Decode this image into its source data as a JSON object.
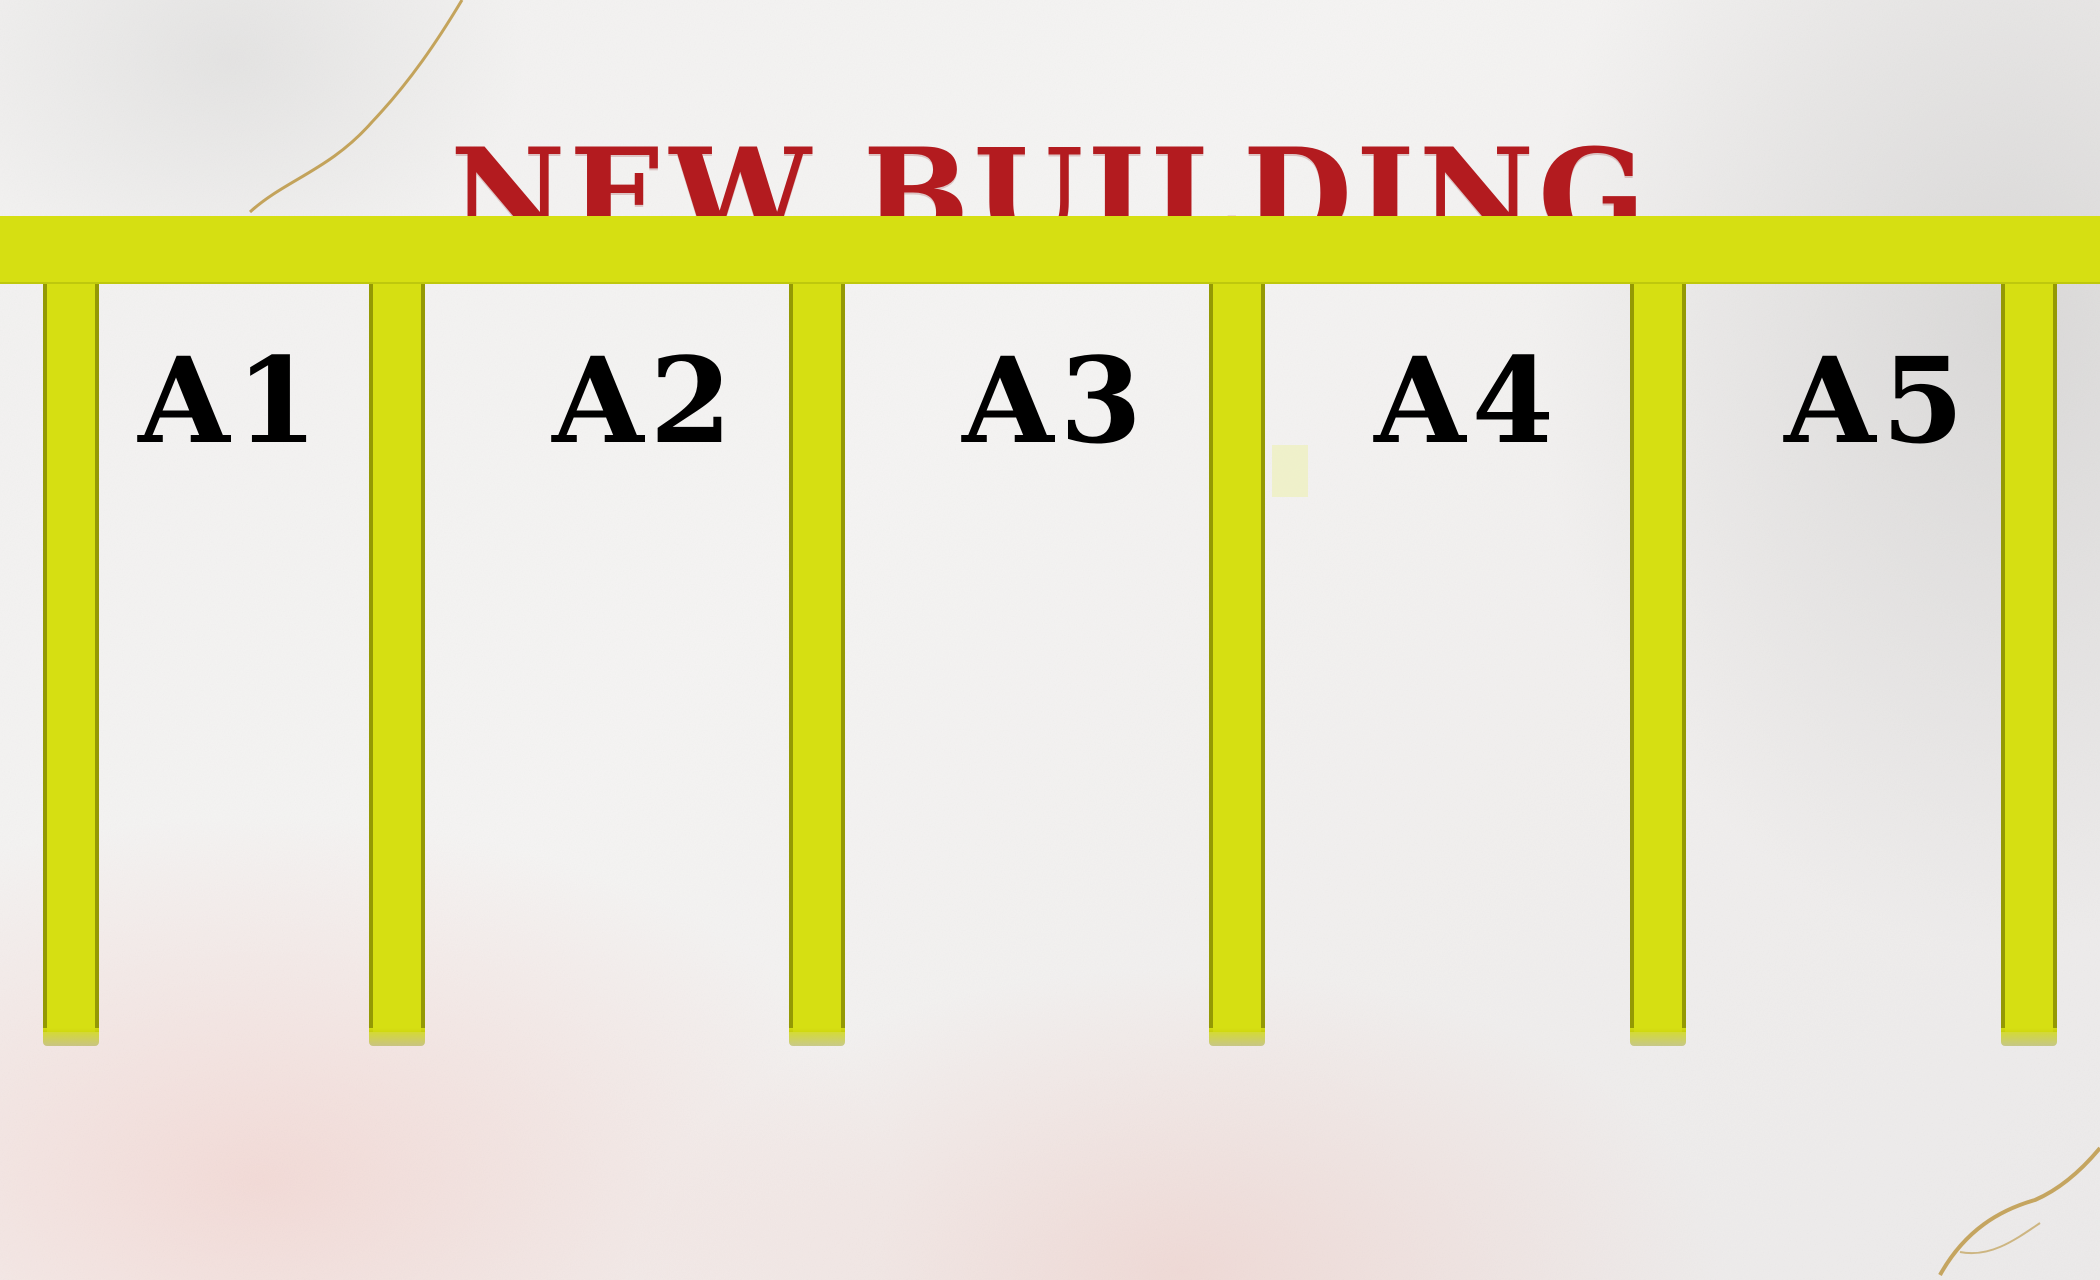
{
  "title": "NEW BUILDING",
  "colors": {
    "title": "#b31b1f",
    "structure": "#d6df12",
    "labels": "#000000",
    "background": "#f3f2f1"
  },
  "bays": [
    {
      "label": "A1"
    },
    {
      "label": "A2"
    },
    {
      "label": "A3"
    },
    {
      "label": "A4"
    },
    {
      "label": "A5"
    }
  ]
}
